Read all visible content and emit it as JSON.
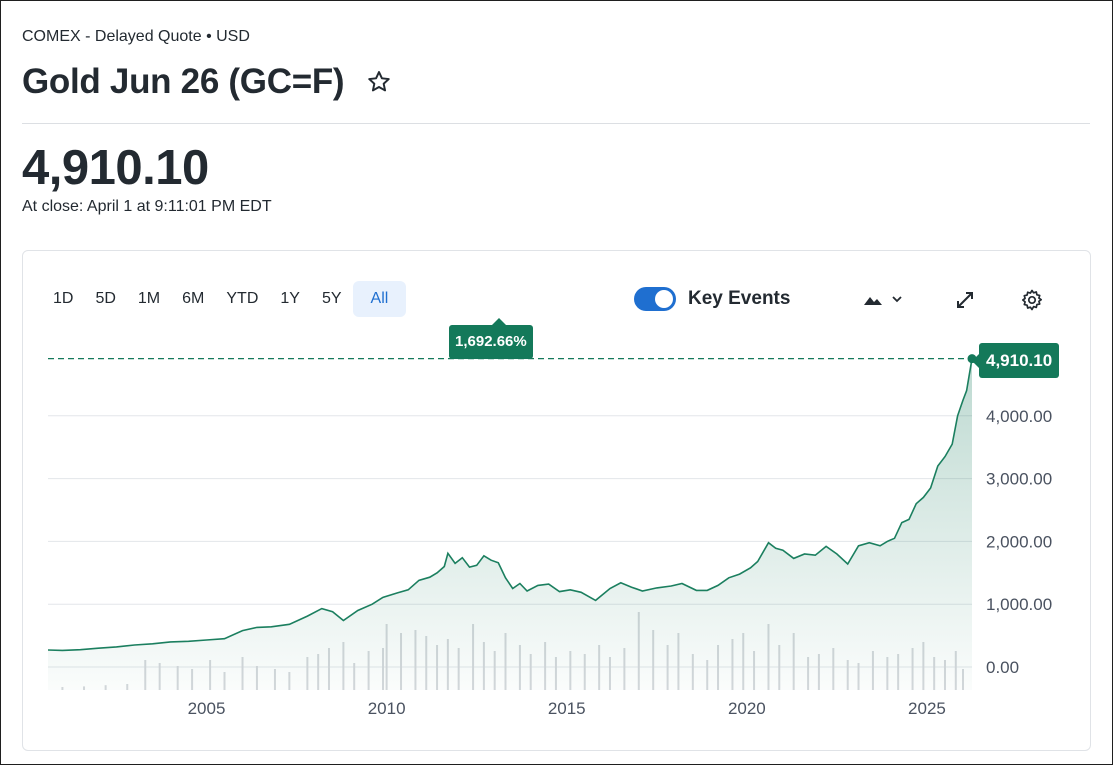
{
  "header": {
    "exchange_line": "COMEX - Delayed Quote • USD",
    "title": "Gold Jun 26 (GC=F)",
    "price": "4,910.10",
    "close_time": "At close: April 1 at 9:11:01 PM EDT"
  },
  "toolbar": {
    "ranges": [
      "1D",
      "5D",
      "1M",
      "6M",
      "YTD",
      "1Y",
      "5Y",
      "All"
    ],
    "active_range": "All",
    "key_events_label": "Key Events",
    "key_events_on": true
  },
  "colors": {
    "line": "#1b7f5f",
    "area": "#14795a",
    "badge": "#14795a",
    "accent": "#1f6fd0",
    "volume": "#d5d8dc"
  },
  "icons": {
    "favorite": "star-icon",
    "chart_type": "mountain-chart-icon",
    "dropdown": "chevron-down-icon",
    "expand": "expand-icon",
    "settings": "gear-icon"
  },
  "chart_data": {
    "type": "area",
    "title": "",
    "xlabel": "",
    "ylabel": "",
    "ylim": [
      0,
      4910.1
    ],
    "yticks": [
      "0.00",
      "1,000.00",
      "2,000.00",
      "3,000.00",
      "4,000.00"
    ],
    "ytick_values": [
      0,
      1000,
      2000,
      3000,
      4000
    ],
    "xticks": [
      "2005",
      "2010",
      "2015",
      "2020",
      "2025"
    ],
    "xtick_values": [
      2005,
      2010,
      2015,
      2020,
      2025
    ],
    "xlim": [
      2000.6,
      2026.25
    ],
    "grid": true,
    "change_label": "1,692.66%",
    "last_value_label": "4,910.10",
    "last_value": 4910.1,
    "series": [
      {
        "x": [
          2000.6,
          2001.0,
          2001.5,
          2002.0,
          2002.5,
          2003.0,
          2003.5,
          2004.0,
          2004.5,
          2005.0,
          2005.5,
          2006.0,
          2006.4,
          2006.8,
          2007.3,
          2007.8,
          2008.2,
          2008.5,
          2008.8,
          2009.2,
          2009.6,
          2009.9,
          2010.3,
          2010.6,
          2010.9,
          2011.2,
          2011.4,
          2011.6,
          2011.7,
          2011.9,
          2012.1,
          2012.3,
          2012.5,
          2012.7,
          2012.9,
          2013.1,
          2013.3,
          2013.5,
          2013.7,
          2013.9,
          2014.2,
          2014.5,
          2014.8,
          2015.1,
          2015.4,
          2015.8,
          2016.2,
          2016.5,
          2016.8,
          2017.1,
          2017.5,
          2017.9,
          2018.2,
          2018.6,
          2018.9,
          2019.2,
          2019.5,
          2019.8,
          2020.1,
          2020.3,
          2020.6,
          2020.8,
          2021.0,
          2021.3,
          2021.6,
          2021.9,
          2022.2,
          2022.5,
          2022.8,
          2023.1,
          2023.4,
          2023.7,
          2023.9,
          2024.1,
          2024.3,
          2024.5,
          2024.7,
          2024.9,
          2025.1,
          2025.3,
          2025.5,
          2025.7,
          2025.85,
          2026.0,
          2026.1,
          2026.25
        ],
        "y": [
          270,
          265,
          275,
          300,
          320,
          350,
          370,
          400,
          410,
          430,
          450,
          580,
          630,
          640,
          680,
          810,
          930,
          880,
          740,
          900,
          1000,
          1110,
          1180,
          1230,
          1380,
          1430,
          1500,
          1600,
          1810,
          1650,
          1740,
          1590,
          1620,
          1770,
          1700,
          1660,
          1420,
          1250,
          1330,
          1210,
          1300,
          1320,
          1200,
          1230,
          1190,
          1060,
          1250,
          1340,
          1270,
          1210,
          1260,
          1290,
          1330,
          1220,
          1220,
          1300,
          1420,
          1480,
          1580,
          1680,
          1980,
          1890,
          1860,
          1730,
          1800,
          1780,
          1920,
          1800,
          1640,
          1930,
          1980,
          1930,
          2000,
          2050,
          2300,
          2350,
          2600,
          2700,
          2850,
          3200,
          3350,
          3550,
          4000,
          4250,
          4400,
          4910.1
        ]
      }
    ],
    "volume": {
      "x": [
        2001.0,
        2001.6,
        2002.2,
        2002.8,
        2003.3,
        2003.7,
        2004.2,
        2004.6,
        2005.1,
        2005.5,
        2006.0,
        2006.4,
        2006.9,
        2007.3,
        2007.8,
        2008.1,
        2008.4,
        2008.8,
        2009.1,
        2009.5,
        2009.9,
        2010.0,
        2010.4,
        2010.8,
        2011.1,
        2011.4,
        2011.7,
        2012.0,
        2012.4,
        2012.7,
        2013.0,
        2013.3,
        2013.7,
        2014.0,
        2014.4,
        2014.7,
        2015.1,
        2015.5,
        2015.9,
        2016.2,
        2016.6,
        2017.0,
        2017.4,
        2017.8,
        2018.1,
        2018.5,
        2018.9,
        2019.2,
        2019.6,
        2019.9,
        2020.2,
        2020.6,
        2020.9,
        2021.3,
        2021.7,
        2022.0,
        2022.4,
        2022.8,
        2023.1,
        2023.5,
        2023.9,
        2024.2,
        2024.6,
        2024.9,
        2025.2,
        2025.5,
        2025.8,
        2026.0
      ],
      "values": [
        5,
        6,
        8,
        10,
        50,
        45,
        40,
        35,
        50,
        30,
        55,
        40,
        35,
        30,
        55,
        60,
        70,
        80,
        45,
        65,
        70,
        110,
        95,
        100,
        90,
        75,
        85,
        70,
        110,
        80,
        65,
        95,
        75,
        60,
        80,
        55,
        65,
        60,
        75,
        55,
        70,
        130,
        100,
        75,
        95,
        60,
        50,
        75,
        85,
        95,
        65,
        110,
        75,
        95,
        55,
        60,
        70,
        50,
        45,
        65,
        55,
        60,
        70,
        80,
        55,
        50,
        65,
        35
      ]
    }
  }
}
